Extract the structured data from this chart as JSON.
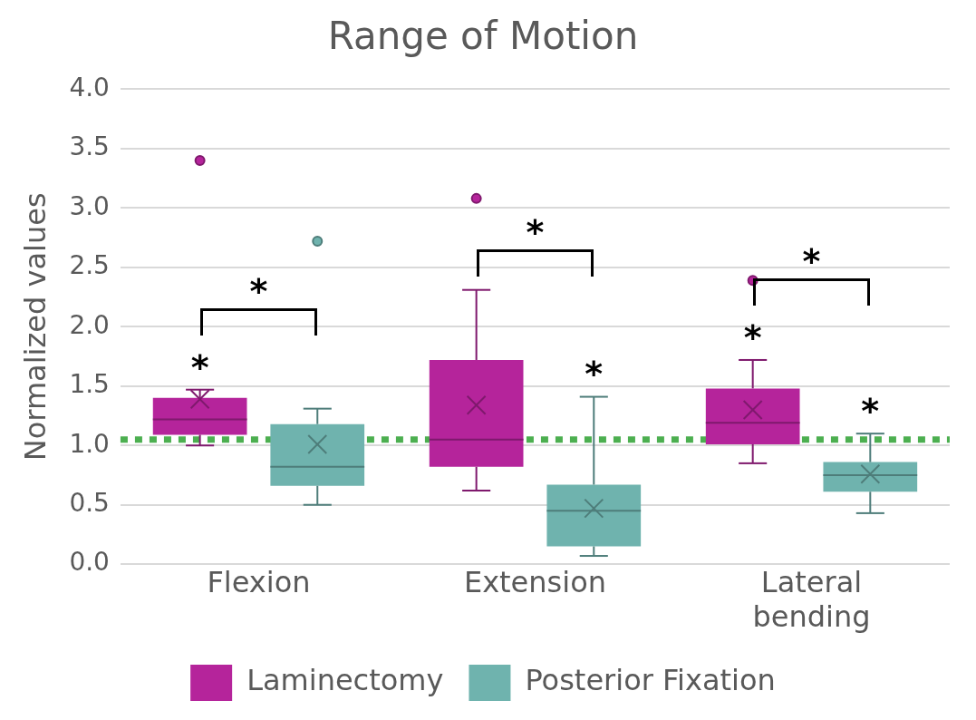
{
  "chart_data": {
    "type": "box",
    "title": "Range of Motion",
    "ylabel": "Normalized values",
    "categories": [
      "Flexion",
      "Extension",
      "Lateral bending"
    ],
    "series": [
      {
        "name": "Laminectomy",
        "color": "#b5249b",
        "boxes": [
          {
            "low": 1.0,
            "q1": 1.09,
            "median": 1.22,
            "q3": 1.4,
            "high": 1.47,
            "mean": 1.39,
            "outliers": [
              3.4
            ]
          },
          {
            "low": 0.62,
            "q1": 0.82,
            "median": 1.05,
            "q3": 1.72,
            "high": 2.31,
            "mean": 1.34,
            "outliers": [
              3.08
            ]
          },
          {
            "low": 0.85,
            "q1": 1.01,
            "median": 1.19,
            "q3": 1.48,
            "high": 1.72,
            "mean": 1.3,
            "outliers": [
              2.39
            ]
          }
        ]
      },
      {
        "name": "Posterior Fixation",
        "color": "#6fb3ae",
        "boxes": [
          {
            "low": 0.5,
            "q1": 0.66,
            "median": 0.82,
            "q3": 1.18,
            "high": 1.31,
            "mean": 1.01,
            "outliers": [
              2.72
            ]
          },
          {
            "low": 0.07,
            "q1": 0.15,
            "median": 0.45,
            "q3": 0.67,
            "high": 1.41,
            "mean": 0.47
          },
          {
            "low": 0.43,
            "q1": 0.61,
            "median": 0.75,
            "q3": 0.86,
            "high": 1.1,
            "mean": 0.76
          }
        ]
      }
    ],
    "ylim": [
      0,
      4
    ],
    "yticks": [
      {
        "value": 0,
        "label": "0.0"
      },
      {
        "value": 0.5,
        "label": "0.5"
      },
      {
        "value": 1,
        "label": "1.0"
      },
      {
        "value": 1.5,
        "label": "1.5"
      },
      {
        "value": 2,
        "label": "2.0"
      },
      {
        "value": 2.5,
        "label": "2.5"
      },
      {
        "value": 3,
        "label": "3.0"
      },
      {
        "value": 3.5,
        "label": "3.5"
      },
      {
        "value": 4,
        "label": "4.0"
      }
    ],
    "ref_lines": [
      {
        "axis": "y",
        "value": 1.05,
        "color": "#4caf50",
        "line_style": "dotted"
      }
    ],
    "annotations": [
      "*",
      "*",
      "*",
      "*",
      "*",
      "*",
      "*"
    ],
    "grid": "y",
    "legend": "bottom"
  }
}
